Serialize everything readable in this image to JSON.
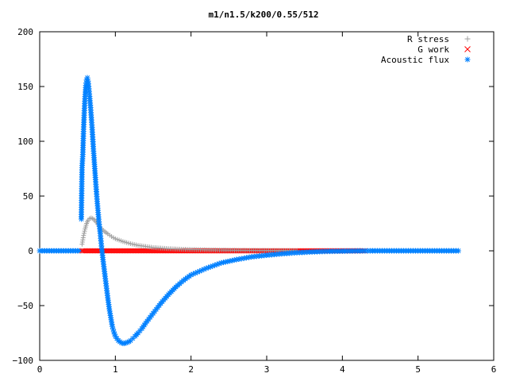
{
  "chart_data": {
    "type": "scatter",
    "title": "m1/n1.5/k200/0.55/512",
    "xlabel": "",
    "ylabel": "",
    "xlim": [
      0,
      6
    ],
    "ylim": [
      -100,
      200
    ],
    "xticks": [
      0,
      1,
      2,
      3,
      4,
      5,
      6
    ],
    "yticks": [
      -100,
      -50,
      0,
      50,
      100,
      150,
      200
    ],
    "xtick_labels": [
      "0",
      "1",
      "2",
      "3",
      "4",
      "5",
      "6"
    ],
    "ytick_labels": [
      "−100",
      "−50",
      "0",
      "50",
      "100",
      "150",
      "200"
    ],
    "grid": false,
    "legend_position": "top-right",
    "series": [
      {
        "name": "R stress",
        "marker": "plus",
        "color": "#a0a0a0",
        "x": [
          0.56,
          0.58,
          0.6,
          0.62,
          0.64,
          0.66,
          0.68,
          0.7,
          0.72,
          0.75,
          0.78,
          0.82,
          0.86,
          0.9,
          0.95,
          1.0,
          1.1,
          1.2,
          1.3,
          1.4,
          1.5,
          1.6,
          1.7,
          1.8,
          1.9,
          2.0,
          2.2,
          2.4,
          2.6,
          2.8,
          3.0,
          3.2,
          3.4
        ],
        "y": [
          6,
          14,
          20,
          25,
          28,
          29.5,
          30,
          29.5,
          28.5,
          26,
          23,
          20,
          17.5,
          15.5,
          13,
          11,
          8.5,
          6.5,
          5,
          4,
          3,
          2.5,
          2,
          1.7,
          1.4,
          1.2,
          0.9,
          0.7,
          0.5,
          0.4,
          0.3,
          0.2,
          0.1
        ]
      },
      {
        "name": "G work",
        "marker": "cross",
        "color": "#ff0000",
        "x_range": [
          0.56,
          4.3
        ],
        "y_const": 0
      },
      {
        "name": "Acoustic flux",
        "marker": "asterisk",
        "color": "#0080ff",
        "x": [
          0.55,
          0.56,
          0.57,
          0.58,
          0.59,
          0.6,
          0.61,
          0.62,
          0.63,
          0.64,
          0.65,
          0.66,
          0.67,
          0.68,
          0.69,
          0.7,
          0.71,
          0.72,
          0.73,
          0.74,
          0.75,
          0.76,
          0.77,
          0.78,
          0.79,
          0.8,
          0.82,
          0.84,
          0.86,
          0.88,
          0.9,
          0.92,
          0.94,
          0.96,
          0.98,
          1.0,
          1.02,
          1.04,
          1.06,
          1.08,
          1.1,
          1.12,
          1.14,
          1.16,
          1.18,
          1.2,
          1.23,
          1.26,
          1.3,
          1.35,
          1.4,
          1.5,
          1.6,
          1.7,
          1.8,
          1.9,
          2.0,
          2.2,
          2.4,
          2.6,
          2.8,
          3.0,
          3.2,
          3.4,
          3.6,
          3.8,
          4.0,
          4.2,
          4.4
        ],
        "y": [
          29,
          76,
          88,
          111,
          128,
          141,
          151,
          156,
          158,
          155,
          148,
          141,
          133,
          124,
          115,
          104,
          93,
          83,
          73,
          63,
          54,
          45,
          37,
          29,
          22,
          16,
          2,
          -10,
          -21,
          -32,
          -43,
          -53,
          -61,
          -69,
          -74,
          -78,
          -80,
          -82,
          -83,
          -84,
          -84.5,
          -84.5,
          -84,
          -83.5,
          -83,
          -82,
          -80,
          -78,
          -75,
          -71,
          -66,
          -57,
          -48,
          -40,
          -33,
          -27,
          -22,
          -16,
          -11,
          -8,
          -5.5,
          -4,
          -2.7,
          -1.7,
          -1,
          -0.5,
          -0.3,
          -0.1,
          0
        ],
        "baseline_segments": [
          [
            0,
            0.55
          ],
          [
            4.4,
            5.55
          ]
        ]
      }
    ]
  }
}
